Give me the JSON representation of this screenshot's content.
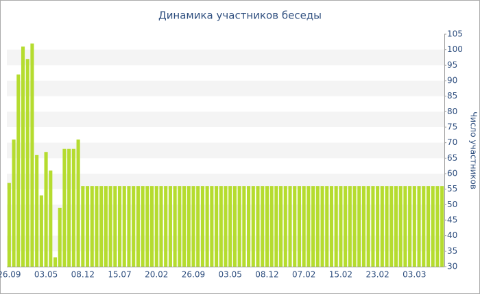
{
  "chart_data": {
    "type": "bar",
    "title": "Динамика участников беседы",
    "y_label": "Число участников",
    "categories": [
      "26.09",
      null,
      null,
      null,
      null,
      null,
      null,
      null,
      "03.05",
      null,
      null,
      null,
      null,
      null,
      null,
      null,
      "08.12",
      null,
      null,
      null,
      null,
      null,
      null,
      null,
      "15.07",
      null,
      null,
      null,
      null,
      null,
      null,
      null,
      "20.02",
      null,
      null,
      null,
      null,
      null,
      null,
      null,
      "26.09",
      null,
      null,
      null,
      null,
      null,
      null,
      null,
      "03.05",
      null,
      null,
      null,
      null,
      null,
      null,
      null,
      "08.12",
      null,
      null,
      null,
      null,
      null,
      null,
      null,
      "07.02",
      null,
      null,
      null,
      null,
      null,
      null,
      null,
      "15.02",
      null,
      null,
      null,
      null,
      null,
      null,
      null,
      "23.02",
      null,
      null,
      null,
      null,
      null,
      null,
      null,
      "03.03",
      null,
      null,
      null,
      null,
      null,
      null
    ],
    "values": [
      57,
      71,
      92,
      101,
      97,
      102,
      66,
      53,
      67,
      61,
      33,
      49,
      68,
      68,
      68,
      71,
      56,
      56,
      56,
      56,
      56,
      56,
      56,
      56,
      56,
      56,
      56,
      56,
      56,
      56,
      56,
      56,
      56,
      56,
      56,
      56,
      56,
      56,
      56,
      56,
      56,
      56,
      56,
      56,
      56,
      56,
      56,
      56,
      56,
      56,
      56,
      56,
      56,
      56,
      56,
      56,
      56,
      56,
      56,
      56,
      56,
      56,
      56,
      56,
      56,
      56,
      56,
      56,
      56,
      56,
      56,
      56,
      56,
      56,
      56,
      56,
      56,
      56,
      56,
      56,
      56,
      56,
      56,
      56,
      56,
      56,
      56,
      56,
      56,
      56,
      56,
      56,
      56,
      56,
      56
    ],
    "color": "#b5dc2f",
    "ylim": [
      30,
      105
    ],
    "yticks": [
      30,
      35,
      40,
      45,
      50,
      55,
      60,
      65,
      70,
      75,
      80,
      85,
      90,
      95,
      100,
      105
    ],
    "grid": true,
    "y_axis_side": "right"
  }
}
